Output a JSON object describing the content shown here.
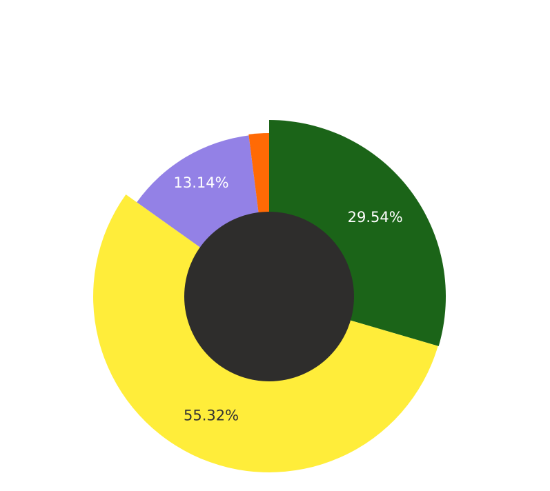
{
  "chart_data": {
    "type": "pie",
    "variant": "donut",
    "slices": [
      {
        "value": 29.54,
        "label": "29.54%",
        "color": "#1b6418",
        "label_color": "#ffffff",
        "radius_scale": 1.0
      },
      {
        "value": 55.32,
        "label": "55.32%",
        "color": "#ffed3a",
        "label_color": "#333333",
        "radius_scale": 0.996
      },
      {
        "value": 13.14,
        "label": "13.14%",
        "color": "#9381e6",
        "label_color": "#ffffff",
        "radius_scale": 0.92
      },
      {
        "value": 2.0,
        "label": "",
        "color": "#ff6a05",
        "label_color": "#ffffff",
        "radius_scale": 0.926
      }
    ],
    "center_color": "#2e2d2c",
    "start_angle": "top",
    "direction": "clockwise",
    "legend": "none"
  }
}
